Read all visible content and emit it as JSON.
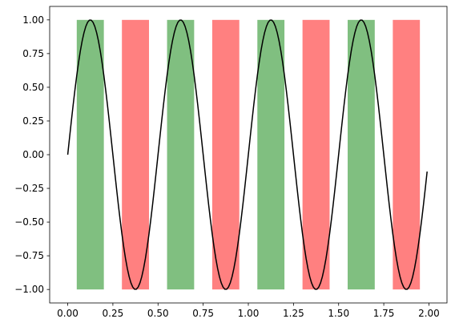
{
  "chart_data": {
    "type": "line",
    "title": "",
    "xlabel": "",
    "ylabel": "",
    "xlim": [
      -0.1,
      2.1
    ],
    "ylim": [
      -1.1,
      1.1
    ],
    "grid": false,
    "x_ticks": [
      0.0,
      0.25,
      0.5,
      0.75,
      1.0,
      1.25,
      1.5,
      1.75,
      2.0
    ],
    "x_tick_labels": [
      "0.00",
      "0.25",
      "0.50",
      "0.75",
      "1.00",
      "1.25",
      "1.50",
      "1.75",
      "2.00"
    ],
    "y_ticks": [
      -1.0,
      -0.75,
      -0.5,
      -0.25,
      0.0,
      0.25,
      0.5,
      0.75,
      1.0
    ],
    "y_tick_labels": [
      "−1.00",
      "−0.75",
      "−0.50",
      "−0.25",
      "0.00",
      "0.25",
      "0.50",
      "0.75",
      "1.00"
    ],
    "series": [
      {
        "function": "sin(4*pi*x)",
        "x_start": 0.0,
        "x_end": 1.99,
        "x_step": 0.01,
        "color": "#000000"
      }
    ],
    "bars": [
      {
        "x_start": 0.05,
        "x_end": 0.2,
        "y_start": -1,
        "y_end": 1,
        "color": "#80bf80"
      },
      {
        "x_start": 0.3,
        "x_end": 0.45,
        "y_start": -1,
        "y_end": 1,
        "color": "#ff8080"
      },
      {
        "x_start": 0.55,
        "x_end": 0.7,
        "y_start": -1,
        "y_end": 1,
        "color": "#80bf80"
      },
      {
        "x_start": 0.8,
        "x_end": 0.95,
        "y_start": -1,
        "y_end": 1,
        "color": "#ff8080"
      },
      {
        "x_start": 1.05,
        "x_end": 1.2,
        "y_start": -1,
        "y_end": 1,
        "color": "#80bf80"
      },
      {
        "x_start": 1.3,
        "x_end": 1.45,
        "y_start": -1,
        "y_end": 1,
        "color": "#ff8080"
      },
      {
        "x_start": 1.55,
        "x_end": 1.7,
        "y_start": -1,
        "y_end": 1,
        "color": "#80bf80"
      },
      {
        "x_start": 1.8,
        "x_end": 1.95,
        "y_start": -1,
        "y_end": 1,
        "color": "#ff8080"
      }
    ]
  }
}
